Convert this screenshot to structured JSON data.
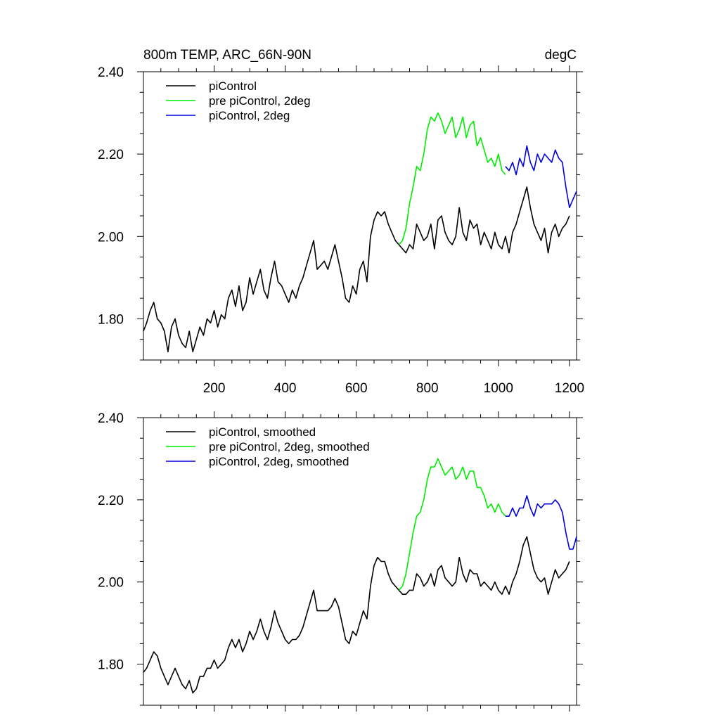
{
  "chart_data": [
    {
      "type": "line",
      "title": "800m TEMP, ARC_66N-90N",
      "units": "degC",
      "xlim": [
        1,
        1220
      ],
      "ylim": [
        1.7,
        2.4
      ],
      "x_ticks": [
        "200",
        "400",
        "600",
        "800",
        "1000",
        "1200"
      ],
      "y_ticks": [
        "1.80",
        "2.00",
        "2.20",
        "2.40"
      ],
      "series": [
        {
          "name": "piControl",
          "color": "#000000",
          "x": [
            1,
            10,
            20,
            30,
            40,
            50,
            60,
            70,
            80,
            90,
            100,
            110,
            120,
            130,
            140,
            150,
            160,
            170,
            180,
            190,
            200,
            210,
            220,
            230,
            240,
            250,
            260,
            270,
            280,
            290,
            300,
            310,
            320,
            330,
            340,
            350,
            360,
            370,
            380,
            390,
            400,
            410,
            420,
            430,
            440,
            450,
            460,
            470,
            480,
            490,
            500,
            510,
            520,
            530,
            540,
            550,
            560,
            570,
            580,
            590,
            600,
            610,
            620,
            630,
            640,
            650,
            660,
            670,
            680,
            690,
            700,
            710,
            720,
            730,
            740,
            750,
            760,
            770,
            780,
            790,
            800,
            810,
            820,
            830,
            840,
            850,
            860,
            870,
            880,
            890,
            900,
            910,
            920,
            930,
            940,
            950,
            960,
            970,
            980,
            990,
            1000,
            1010,
            1020,
            1030,
            1040,
            1050,
            1060,
            1070,
            1080,
            1090,
            1100,
            1110,
            1120,
            1130,
            1140,
            1150,
            1160,
            1170,
            1180,
            1190,
            1200
          ],
          "y": [
            1.77,
            1.79,
            1.82,
            1.84,
            1.8,
            1.79,
            1.77,
            1.72,
            1.78,
            1.8,
            1.76,
            1.74,
            1.73,
            1.77,
            1.72,
            1.75,
            1.78,
            1.76,
            1.8,
            1.79,
            1.82,
            1.78,
            1.81,
            1.8,
            1.85,
            1.87,
            1.83,
            1.88,
            1.82,
            1.84,
            1.9,
            1.86,
            1.89,
            1.92,
            1.87,
            1.85,
            1.9,
            1.94,
            1.89,
            1.88,
            1.86,
            1.84,
            1.87,
            1.85,
            1.88,
            1.9,
            1.93,
            1.96,
            1.99,
            1.92,
            1.93,
            1.94,
            1.92,
            1.95,
            1.98,
            1.94,
            1.9,
            1.85,
            1.84,
            1.88,
            1.86,
            1.92,
            1.94,
            1.89,
            2.0,
            2.04,
            2.06,
            2.05,
            2.06,
            2.03,
            2.01,
            1.99,
            1.98,
            1.97,
            1.96,
            1.98,
            1.97,
            2.03,
            2.01,
            1.99,
            2.0,
            2.03,
            1.97,
            2.04,
            2.05,
            2.01,
            1.99,
            1.98,
            2.0,
            2.07,
            2.01,
            1.99,
            2.04,
            2.02,
            2.03,
            1.98,
            2.01,
            1.99,
            1.97,
            2.01,
            1.98,
            1.97,
            2.0,
            1.96,
            2.01,
            2.03,
            2.06,
            2.09,
            2.12,
            2.07,
            2.03,
            2.01,
            1.99,
            2.02,
            1.96,
            2.01,
            2.03,
            2.0,
            2.02,
            2.03,
            2.05
          ]
        },
        {
          "name": "pre piControl, 2deg",
          "color": "#00ee00",
          "x": [
            720,
            730,
            740,
            750,
            760,
            770,
            780,
            790,
            800,
            810,
            820,
            830,
            840,
            850,
            860,
            870,
            880,
            890,
            900,
            910,
            920,
            930,
            940,
            950,
            960,
            970,
            980,
            990,
            1000,
            1010,
            1020
          ],
          "y": [
            1.98,
            1.99,
            2.02,
            2.08,
            2.12,
            2.17,
            2.16,
            2.2,
            2.26,
            2.29,
            2.28,
            2.3,
            2.28,
            2.25,
            2.27,
            2.29,
            2.24,
            2.26,
            2.29,
            2.24,
            2.27,
            2.28,
            2.22,
            2.24,
            2.21,
            2.18,
            2.19,
            2.17,
            2.2,
            2.16,
            2.15
          ]
        },
        {
          "name": "piControl, 2deg",
          "color": "#0000dd",
          "x": [
            1020,
            1030,
            1040,
            1050,
            1060,
            1070,
            1080,
            1090,
            1100,
            1110,
            1120,
            1130,
            1140,
            1150,
            1160,
            1170,
            1180,
            1190,
            1200,
            1210,
            1220
          ],
          "y": [
            2.17,
            2.16,
            2.18,
            2.15,
            2.19,
            2.17,
            2.22,
            2.18,
            2.16,
            2.2,
            2.18,
            2.2,
            2.19,
            2.18,
            2.21,
            2.19,
            2.18,
            2.12,
            2.07,
            2.09,
            2.11
          ]
        }
      ]
    },
    {
      "type": "line",
      "xlim": [
        1,
        1220
      ],
      "ylim": [
        1.7,
        2.4
      ],
      "x_ticks": [],
      "y_ticks": [
        "1.80",
        "2.00",
        "2.20",
        "2.40"
      ],
      "series": [
        {
          "name": "piControl, smoothed",
          "color": "#000000",
          "x": [
            1,
            10,
            20,
            30,
            40,
            50,
            60,
            70,
            80,
            90,
            100,
            110,
            120,
            130,
            140,
            150,
            160,
            170,
            180,
            190,
            200,
            210,
            220,
            230,
            240,
            250,
            260,
            270,
            280,
            290,
            300,
            310,
            320,
            330,
            340,
            350,
            360,
            370,
            380,
            390,
            400,
            410,
            420,
            430,
            440,
            450,
            460,
            470,
            480,
            490,
            500,
            510,
            520,
            530,
            540,
            550,
            560,
            570,
            580,
            590,
            600,
            610,
            620,
            630,
            640,
            650,
            660,
            670,
            680,
            690,
            700,
            710,
            720,
            730,
            740,
            750,
            760,
            770,
            780,
            790,
            800,
            810,
            820,
            830,
            840,
            850,
            860,
            870,
            880,
            890,
            900,
            910,
            920,
            930,
            940,
            950,
            960,
            970,
            980,
            990,
            1000,
            1010,
            1020,
            1030,
            1040,
            1050,
            1060,
            1070,
            1080,
            1090,
            1100,
            1110,
            1120,
            1130,
            1140,
            1150,
            1160,
            1170,
            1180,
            1190,
            1200
          ],
          "y": [
            1.78,
            1.79,
            1.81,
            1.83,
            1.82,
            1.79,
            1.77,
            1.75,
            1.77,
            1.79,
            1.77,
            1.75,
            1.74,
            1.76,
            1.73,
            1.74,
            1.77,
            1.77,
            1.79,
            1.79,
            1.81,
            1.79,
            1.8,
            1.81,
            1.84,
            1.86,
            1.84,
            1.86,
            1.83,
            1.85,
            1.88,
            1.86,
            1.88,
            1.91,
            1.88,
            1.86,
            1.89,
            1.93,
            1.9,
            1.88,
            1.86,
            1.85,
            1.86,
            1.86,
            1.87,
            1.89,
            1.92,
            1.95,
            1.98,
            1.93,
            1.93,
            1.93,
            1.93,
            1.94,
            1.96,
            1.94,
            1.9,
            1.86,
            1.85,
            1.88,
            1.87,
            1.9,
            1.93,
            1.91,
            1.99,
            2.04,
            2.06,
            2.05,
            2.05,
            2.02,
            2.0,
            1.99,
            1.98,
            1.97,
            1.97,
            1.98,
            1.98,
            2.02,
            2.01,
            1.99,
            2.0,
            2.02,
            1.99,
            2.03,
            2.04,
            2.01,
            2.0,
            1.99,
            2.0,
            2.06,
            2.02,
            2.0,
            2.03,
            2.02,
            2.02,
            1.99,
            2.0,
            1.99,
            1.98,
            2.0,
            1.98,
            1.97,
            1.99,
            1.97,
            2.0,
            2.02,
            2.05,
            2.09,
            2.11,
            2.07,
            2.03,
            2.01,
            2.0,
            2.01,
            1.97,
            2.0,
            2.03,
            2.01,
            2.02,
            2.03,
            2.05
          ]
        },
        {
          "name": "pre piControl, 2deg, smoothed",
          "color": "#00ee00",
          "x": [
            720,
            730,
            740,
            750,
            760,
            770,
            780,
            790,
            800,
            810,
            820,
            830,
            840,
            850,
            860,
            870,
            880,
            890,
            900,
            910,
            920,
            930,
            940,
            950,
            960,
            970,
            980,
            990,
            1000,
            1010,
            1020
          ],
          "y": [
            1.98,
            1.99,
            2.02,
            2.07,
            2.12,
            2.16,
            2.17,
            2.2,
            2.25,
            2.28,
            2.28,
            2.3,
            2.28,
            2.26,
            2.27,
            2.28,
            2.25,
            2.26,
            2.28,
            2.25,
            2.27,
            2.27,
            2.23,
            2.23,
            2.21,
            2.18,
            2.19,
            2.17,
            2.19,
            2.17,
            2.16
          ]
        },
        {
          "name": "piControl, 2deg, smoothed",
          "color": "#0000dd",
          "x": [
            1020,
            1030,
            1040,
            1050,
            1060,
            1070,
            1080,
            1090,
            1100,
            1110,
            1120,
            1130,
            1140,
            1150,
            1160,
            1170,
            1180,
            1190,
            1200,
            1210,
            1220
          ],
          "y": [
            2.16,
            2.16,
            2.18,
            2.16,
            2.18,
            2.18,
            2.21,
            2.18,
            2.16,
            2.19,
            2.18,
            2.19,
            2.19,
            2.19,
            2.2,
            2.19,
            2.17,
            2.12,
            2.08,
            2.08,
            2.11
          ]
        }
      ]
    }
  ]
}
